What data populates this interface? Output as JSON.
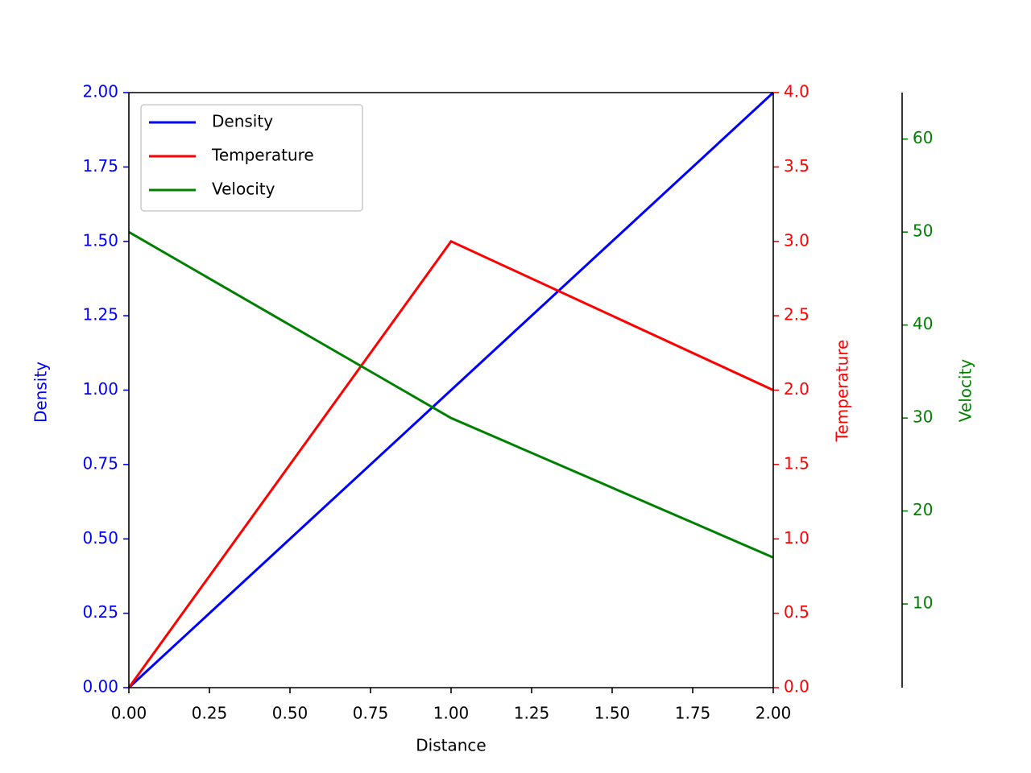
{
  "chart_data": {
    "type": "line",
    "xlabel": "Distance",
    "ylabel": "Density",
    "y2label": "Temperature",
    "y3label": "Velocity",
    "x": [
      0,
      1,
      2
    ],
    "series": [
      {
        "name": "Density",
        "color": "#0000ff",
        "axis": "y",
        "values": [
          0,
          1,
          2
        ]
      },
      {
        "name": "Temperature",
        "color": "#ff0000",
        "axis": "y2",
        "values": [
          0,
          3,
          2
        ]
      },
      {
        "name": "Velocity",
        "color": "#008000",
        "axis": "y3",
        "values": [
          50,
          30,
          15
        ]
      }
    ],
    "xlim": [
      0,
      2
    ],
    "xticks": [
      {
        "value": 0,
        "label": "0.00"
      },
      {
        "value": 0.25,
        "label": "0.25"
      },
      {
        "value": 0.5,
        "label": "0.50"
      },
      {
        "value": 0.75,
        "label": "0.75"
      },
      {
        "value": 1,
        "label": "1.00"
      },
      {
        "value": 1.25,
        "label": "1.25"
      },
      {
        "value": 1.5,
        "label": "1.50"
      },
      {
        "value": 1.75,
        "label": "1.75"
      },
      {
        "value": 2,
        "label": "2.00"
      }
    ],
    "ylim": [
      0,
      2
    ],
    "yticks": [
      {
        "value": 0,
        "label": "0.00"
      },
      {
        "value": 0.25,
        "label": "0.25"
      },
      {
        "value": 0.5,
        "label": "0.50"
      },
      {
        "value": 0.75,
        "label": "0.75"
      },
      {
        "value": 1,
        "label": "1.00"
      },
      {
        "value": 1.25,
        "label": "1.25"
      },
      {
        "value": 1.5,
        "label": "1.50"
      },
      {
        "value": 1.75,
        "label": "1.75"
      },
      {
        "value": 2,
        "label": "2.00"
      }
    ],
    "y2lim": [
      0,
      4
    ],
    "y2ticks": [
      {
        "value": 0,
        "label": "0.0"
      },
      {
        "value": 0.5,
        "label": "0.5"
      },
      {
        "value": 1,
        "label": "1.0"
      },
      {
        "value": 1.5,
        "label": "1.5"
      },
      {
        "value": 2,
        "label": "2.0"
      },
      {
        "value": 2.5,
        "label": "2.5"
      },
      {
        "value": 3,
        "label": "3.0"
      },
      {
        "value": 3.5,
        "label": "3.5"
      },
      {
        "value": 4,
        "label": "4.0"
      }
    ],
    "y3lim": [
      1,
      65
    ],
    "y3ticks": [
      10,
      20,
      30,
      40,
      50,
      60
    ],
    "legend": "upper left",
    "grid": false
  }
}
